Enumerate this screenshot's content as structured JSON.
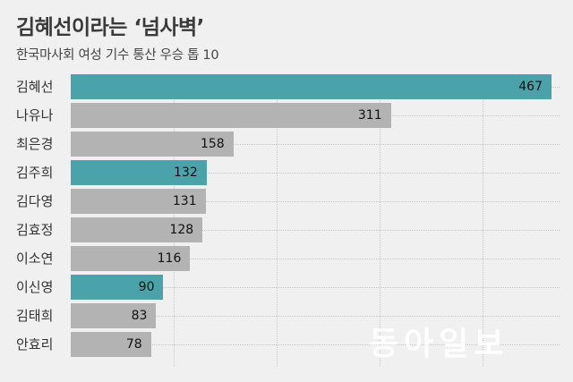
{
  "header": {
    "title": "김혜선이라는 ‘넘사벽’",
    "subtitle": "한국마사회 여성 기수 통산 우승 톱 10"
  },
  "watermark": "동아일보",
  "colors": {
    "highlight": "#4aa3ab",
    "default": "#b3b3b3",
    "background": "#f0f0f0"
  },
  "chart_data": {
    "type": "bar",
    "orientation": "horizontal",
    "title": "김혜선이라는 ‘넘사벽’",
    "subtitle": "한국마사회 여성 기수 통산 우승 톱 10",
    "xlabel": "",
    "ylabel": "",
    "xlim": [
      0,
      480
    ],
    "grid": true,
    "categories": [
      "김혜선",
      "나유나",
      "최은경",
      "김주희",
      "김다영",
      "김효정",
      "이소연",
      "이신영",
      "김태희",
      "안효리"
    ],
    "values": [
      467,
      311,
      158,
      132,
      131,
      128,
      116,
      90,
      83,
      78
    ],
    "highlighted": [
      "김혜선",
      "김주희",
      "이신영"
    ]
  }
}
